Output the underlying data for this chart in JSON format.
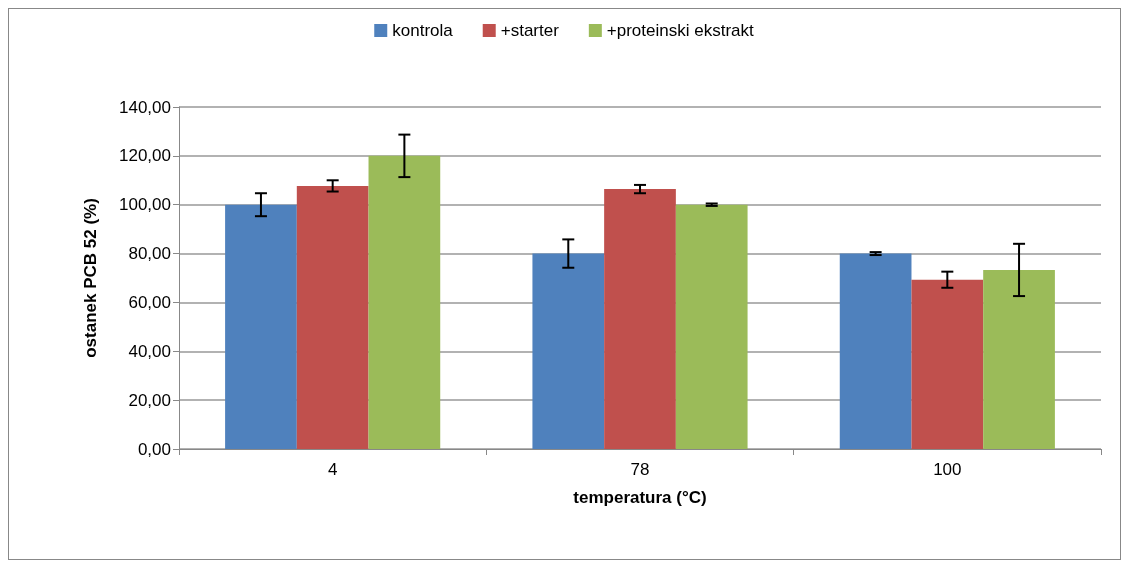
{
  "chart_data": {
    "type": "bar",
    "xlabel": "temperatura (°C)",
    "ylabel": "ostanek PCB 52 (%)",
    "categories": [
      "4",
      "78",
      "100"
    ],
    "series": [
      {
        "name": "kontrola",
        "color": "#4f81bd",
        "values": [
          100,
          80,
          80
        ],
        "errors": [
          4.7,
          5.8,
          0.6
        ]
      },
      {
        "name": "+starter",
        "color": "#c0504d",
        "values": [
          107.7,
          106.4,
          69.3
        ],
        "errors": [
          2.3,
          1.7,
          3.3
        ]
      },
      {
        "name": "+proteinski ekstrakt",
        "color": "#9bbb59",
        "values": [
          120,
          100,
          73.3
        ],
        "errors": [
          8.7,
          0.5,
          10.7
        ]
      }
    ],
    "ylim": [
      0,
      140
    ],
    "yticks": [
      {
        "value": 0,
        "label": "0,00"
      },
      {
        "value": 20,
        "label": "20,00"
      },
      {
        "value": 40,
        "label": "40,00"
      },
      {
        "value": 60,
        "label": "60,00"
      },
      {
        "value": 80,
        "label": "80,00"
      },
      {
        "value": 100,
        "label": "100,00"
      },
      {
        "value": 120,
        "label": "120,00"
      },
      {
        "value": 140,
        "label": "140,00"
      }
    ],
    "grid": "y",
    "legend": "top"
  }
}
